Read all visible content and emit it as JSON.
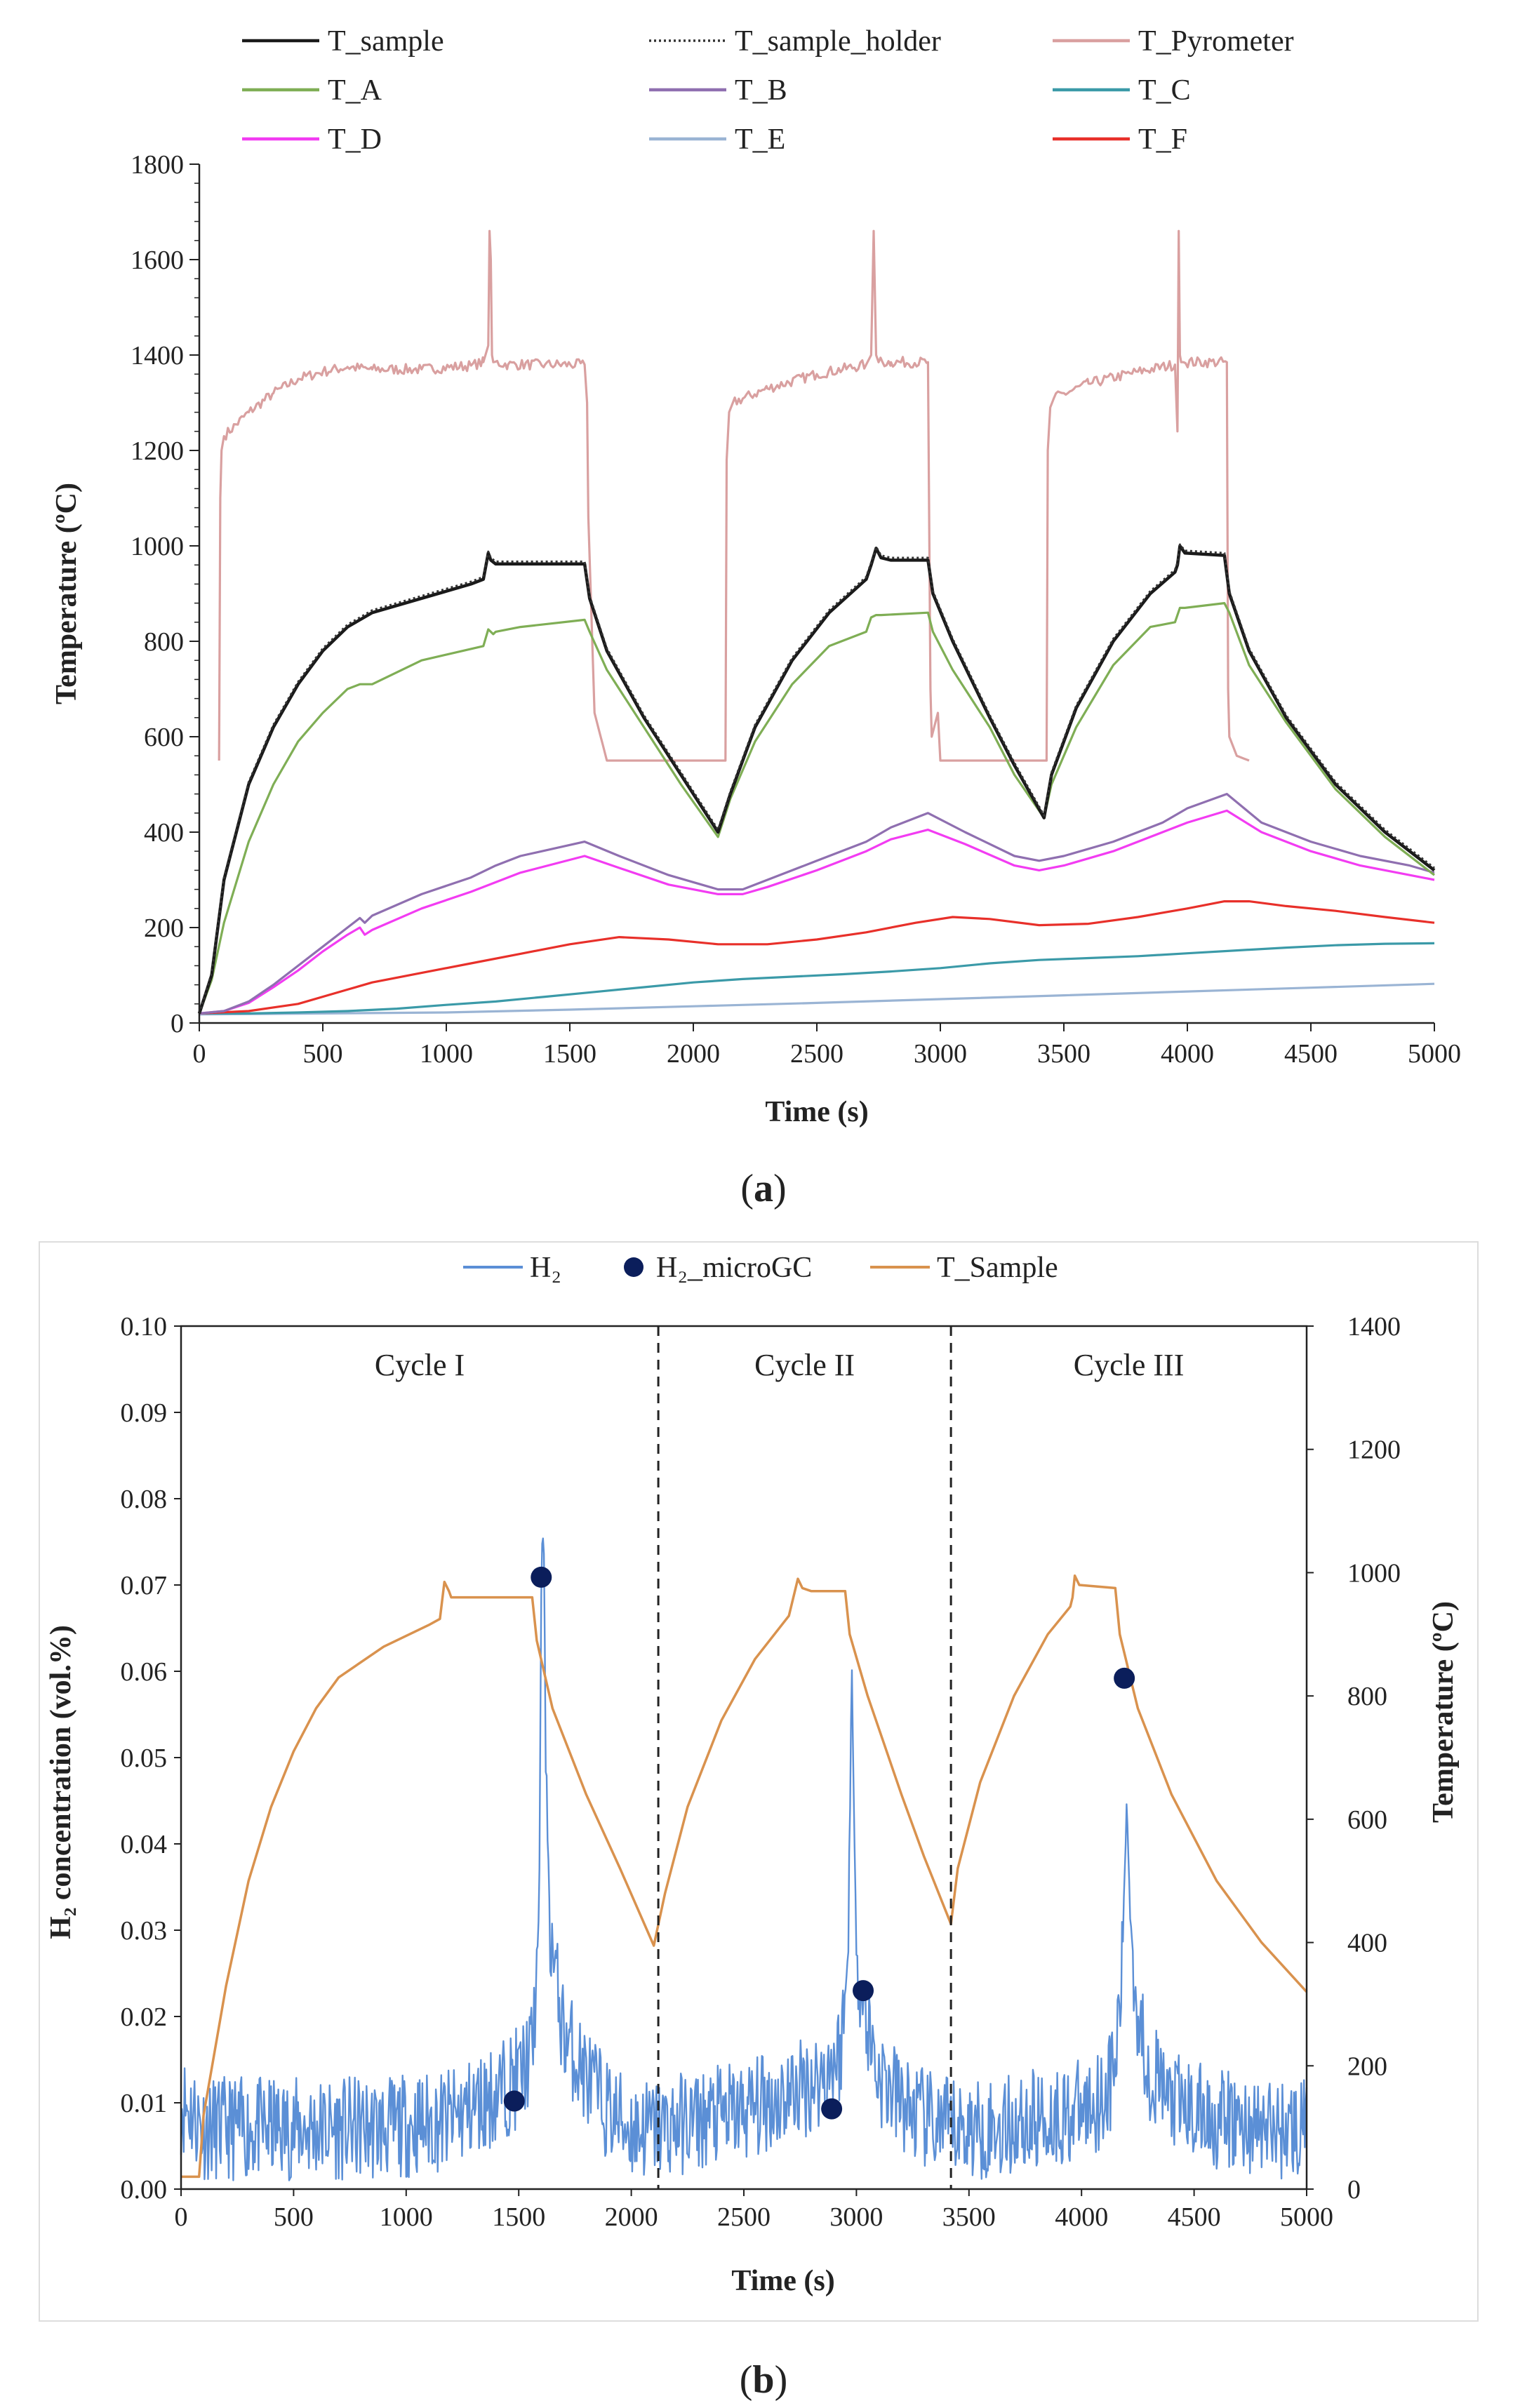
{
  "panel_a": {
    "label": "a",
    "legend": [
      "T_sample",
      "T_sample_holder",
      "T_Pyrometer",
      "T_A",
      "T_B",
      "T_C",
      "T_D",
      "T_E",
      "T_F"
    ]
  },
  "panel_b": {
    "label": "b",
    "legend": [
      "H₂",
      "H₂_microGC",
      "T_Sample"
    ],
    "cycle_labels": [
      "Cycle I",
      "Cycle II",
      "Cycle III"
    ]
  },
  "colors": {
    "T_sample": "#1a1a1a",
    "T_sample_holder": "#333333",
    "T_Pyrometer": "#d9a0a0",
    "T_A": "#7fae55",
    "T_B": "#8f6fb0",
    "T_C": "#3b9aa8",
    "T_D": "#f23cf2",
    "T_E": "#9ab4d4",
    "T_F": "#e8302a",
    "H2": "#5b8fd6",
    "H2_microGC": "#0b1e5b",
    "T_Sample_b": "#d9924e"
  },
  "chart_data": [
    {
      "type": "line",
      "title": "",
      "xlabel": "Time (s)",
      "ylabel": "Temperature (ºC)",
      "xlim": [
        0,
        5000
      ],
      "ylim": [
        0,
        1800
      ],
      "xticks": [
        0,
        500,
        1000,
        1500,
        2000,
        2500,
        3000,
        3500,
        4000,
        4500,
        5000
      ],
      "yticks": [
        0,
        200,
        400,
        600,
        800,
        1000,
        1200,
        1400,
        1600,
        1800
      ],
      "legend_position": "top",
      "series": [
        {
          "name": "T_sample",
          "x": [
            0,
            50,
            100,
            200,
            300,
            400,
            500,
            600,
            700,
            900,
            1100,
            1150,
            1170,
            1180,
            1200,
            1300,
            1560,
            1580,
            1650,
            1800,
            1950,
            2100,
            2150,
            2250,
            2400,
            2550,
            2700,
            2720,
            2740,
            2760,
            2800,
            2950,
            2970,
            3050,
            3200,
            3300,
            3420,
            3450,
            3550,
            3700,
            3850,
            3950,
            3960,
            3970,
            3990,
            4150,
            4170,
            4250,
            4400,
            4600,
            4800,
            5000
          ],
          "y": [
            20,
            100,
            300,
            500,
            620,
            710,
            780,
            830,
            860,
            890,
            920,
            930,
            985,
            970,
            962,
            962,
            962,
            890,
            780,
            640,
            520,
            400,
            480,
            620,
            760,
            860,
            930,
            960,
            995,
            975,
            970,
            970,
            900,
            800,
            640,
            540,
            430,
            520,
            660,
            800,
            900,
            945,
            960,
            1000,
            985,
            980,
            900,
            780,
            640,
            500,
            400,
            320
          ]
        },
        {
          "name": "T_sample_holder",
          "x": [
            0,
            50,
            100,
            200,
            300,
            400,
            500,
            600,
            700,
            900,
            1100,
            1150,
            1170,
            1180,
            1200,
            1300,
            1560,
            1580,
            1650,
            1800,
            1950,
            2100,
            2150,
            2250,
            2400,
            2550,
            2700,
            2720,
            2740,
            2760,
            2800,
            2950,
            2970,
            3050,
            3200,
            3300,
            3420,
            3450,
            3550,
            3700,
            3850,
            3950,
            3960,
            3970,
            3990,
            4150,
            4170,
            4250,
            4400,
            4600,
            4800,
            5000
          ],
          "y": [
            20,
            105,
            305,
            505,
            625,
            715,
            785,
            835,
            865,
            895,
            925,
            935,
            988,
            975,
            967,
            967,
            967,
            895,
            785,
            645,
            525,
            405,
            485,
            625,
            765,
            865,
            935,
            965,
            998,
            980,
            975,
            975,
            905,
            805,
            645,
            545,
            435,
            525,
            665,
            805,
            905,
            950,
            965,
            1003,
            990,
            985,
            905,
            785,
            645,
            505,
            405,
            325
          ]
        },
        {
          "name": "T_Pyrometer",
          "x": [
            80,
            85,
            90,
            100,
            200,
            300,
            400,
            500,
            600,
            700,
            900,
            1100,
            1150,
            1170,
            1175,
            1180,
            1185,
            1190,
            1250,
            1400,
            1560,
            1570,
            1575,
            1600,
            1650,
            2130,
            2135,
            2145,
            2160,
            2300,
            2500,
            2700,
            2720,
            2730,
            2740,
            2750,
            2800,
            2950,
            2960,
            2965,
            2990,
            3000,
            3030,
            3430,
            3435,
            3445,
            3460,
            3600,
            3800,
            3950,
            3960,
            3965,
            3970,
            3975,
            3985,
            4160,
            4165,
            4170,
            4200,
            4250
          ],
          "y": [
            550,
            1100,
            1200,
            1230,
            1280,
            1320,
            1350,
            1365,
            1375,
            1370,
            1370,
            1378,
            1385,
            1420,
            1660,
            1600,
            1400,
            1385,
            1380,
            1380,
            1380,
            1300,
            1060,
            650,
            550,
            550,
            1180,
            1280,
            1300,
            1330,
            1360,
            1380,
            1400,
            1660,
            1400,
            1385,
            1385,
            1385,
            700,
            600,
            650,
            550,
            550,
            550,
            1200,
            1290,
            1310,
            1340,
            1365,
            1380,
            1240,
            1660,
            1400,
            1385,
            1385,
            1385,
            700,
            600,
            560,
            550
          ]
        },
        {
          "name": "T_A",
          "x": [
            0,
            50,
            100,
            200,
            300,
            400,
            500,
            600,
            650,
            700,
            900,
            1150,
            1170,
            1190,
            1200,
            1300,
            1560,
            1580,
            1650,
            1800,
            1950,
            2100,
            2150,
            2250,
            2400,
            2550,
            2700,
            2720,
            2740,
            2760,
            2950,
            2970,
            3050,
            3200,
            3300,
            3420,
            3450,
            3550,
            3700,
            3850,
            3950,
            3970,
            3990,
            4150,
            4170,
            4250,
            4400,
            4600,
            4800,
            5000
          ],
          "y": [
            20,
            90,
            210,
            380,
            500,
            590,
            650,
            700,
            710,
            710,
            760,
            790,
            825,
            815,
            820,
            830,
            845,
            820,
            740,
            620,
            500,
            390,
            470,
            590,
            710,
            790,
            820,
            850,
            855,
            855,
            860,
            820,
            740,
            620,
            520,
            430,
            500,
            620,
            750,
            830,
            840,
            870,
            870,
            880,
            860,
            750,
            630,
            490,
            390,
            310
          ]
        },
        {
          "name": "T_B",
          "x": [
            0,
            100,
            200,
            300,
            400,
            500,
            600,
            650,
            670,
            700,
            900,
            1100,
            1200,
            1300,
            1560,
            1700,
            1900,
            2100,
            2200,
            2300,
            2500,
            2700,
            2800,
            2950,
            3100,
            3300,
            3400,
            3500,
            3700,
            3900,
            4000,
            4160,
            4300,
            4500,
            4700,
            4900,
            5000
          ],
          "y": [
            20,
            25,
            45,
            80,
            120,
            160,
            200,
            220,
            210,
            225,
            270,
            305,
            330,
            350,
            380,
            350,
            310,
            280,
            280,
            300,
            340,
            380,
            410,
            440,
            400,
            350,
            340,
            350,
            380,
            420,
            450,
            480,
            420,
            380,
            350,
            330,
            315
          ]
        },
        {
          "name": "T_C",
          "x": [
            0,
            200,
            400,
            600,
            800,
            1000,
            1200,
            1400,
            1600,
            1800,
            2000,
            2200,
            2400,
            2600,
            2800,
            3000,
            3200,
            3400,
            3600,
            3800,
            4000,
            4200,
            4400,
            4600,
            4800,
            5000
          ],
          "y": [
            20,
            20,
            22,
            25,
            30,
            38,
            45,
            55,
            65,
            75,
            85,
            92,
            97,
            102,
            108,
            115,
            125,
            132,
            136,
            140,
            146,
            152,
            158,
            163,
            166,
            167
          ]
        },
        {
          "name": "T_D",
          "x": [
            0,
            100,
            200,
            300,
            400,
            500,
            600,
            650,
            670,
            700,
            900,
            1100,
            1200,
            1300,
            1560,
            1700,
            1900,
            2100,
            2200,
            2300,
            2500,
            2700,
            2800,
            2950,
            3100,
            3300,
            3400,
            3500,
            3700,
            3900,
            4000,
            4160,
            4300,
            4500,
            4700,
            4900,
            5000
          ],
          "y": [
            20,
            25,
            42,
            75,
            110,
            150,
            185,
            200,
            185,
            195,
            240,
            275,
            295,
            315,
            350,
            325,
            290,
            270,
            270,
            285,
            320,
            360,
            385,
            405,
            375,
            330,
            320,
            330,
            360,
            400,
            420,
            445,
            400,
            360,
            330,
            310,
            300
          ]
        },
        {
          "name": "T_E",
          "x": [
            0,
            500,
            1000,
            1500,
            2000,
            2500,
            3000,
            3500,
            4000,
            4500,
            5000
          ],
          "y": [
            18,
            20,
            22,
            28,
            35,
            42,
            50,
            58,
            66,
            74,
            82
          ]
        },
        {
          "name": "T_F",
          "x": [
            0,
            200,
            400,
            600,
            700,
            900,
            1100,
            1300,
            1500,
            1700,
            1900,
            2100,
            2300,
            2500,
            2700,
            2900,
            3050,
            3200,
            3400,
            3600,
            3800,
            4000,
            4150,
            4250,
            4400,
            4600,
            4800,
            5000
          ],
          "y": [
            20,
            25,
            40,
            70,
            85,
            105,
            125,
            145,
            165,
            180,
            175,
            165,
            165,
            175,
            190,
            210,
            222,
            218,
            205,
            208,
            222,
            240,
            255,
            255,
            245,
            235,
            222,
            210
          ]
        }
      ]
    },
    {
      "type": "line",
      "title": "",
      "xlabel": "Time (s)",
      "ylabel": "H₂ concentration (vol.%)",
      "y2label": "Temperature (ºC)",
      "xlim": [
        0,
        5000
      ],
      "ylim": [
        0,
        0.1
      ],
      "y2lim": [
        0,
        1400
      ],
      "xticks": [
        0,
        500,
        1000,
        1500,
        2000,
        2500,
        3000,
        3500,
        4000,
        4500,
        5000
      ],
      "yticks": [
        0.0,
        0.01,
        0.02,
        0.03,
        0.04,
        0.05,
        0.06,
        0.07,
        0.08,
        0.09,
        0.1
      ],
      "y2ticks": [
        0,
        200,
        400,
        600,
        800,
        1000,
        1200,
        1400
      ],
      "cycle_boundaries": [
        2120,
        3420
      ],
      "legend_position": "top",
      "series": [
        {
          "name": "H₂",
          "axis": "left",
          "x": [
            0,
            50,
            100,
            300,
            600,
            900,
            1200,
            1400,
            1500,
            1560,
            1590,
            1600,
            1610,
            1620,
            1640,
            1660,
            1700,
            1800,
            1900,
            2000,
            2100,
            2300,
            2500,
            2700,
            2850,
            2930,
            2960,
            2980,
            2990,
            3010,
            3040,
            3100,
            3200,
            3300,
            3400,
            3600,
            3800,
            4000,
            4100,
            4150,
            4180,
            4200,
            4220,
            4250,
            4300,
            4400,
            4600,
            4800,
            5000
          ],
          "y": [
            0.01,
            0.009,
            0.007,
            0.007,
            0.007,
            0.007,
            0.008,
            0.011,
            0.013,
            0.016,
            0.03,
            0.07,
            0.078,
            0.05,
            0.03,
            0.025,
            0.018,
            0.013,
            0.009,
            0.007,
            0.007,
            0.008,
            0.009,
            0.011,
            0.013,
            0.016,
            0.025,
            0.06,
            0.04,
            0.025,
            0.02,
            0.013,
            0.01,
            0.008,
            0.007,
            0.007,
            0.008,
            0.009,
            0.011,
            0.014,
            0.025,
            0.045,
            0.03,
            0.02,
            0.014,
            0.01,
            0.008,
            0.007,
            0.007
          ]
        },
        {
          "name": "H₂_microGC",
          "axis": "left",
          "type": "scatter",
          "x": [
            1480,
            1600,
            2890,
            3030,
            4190
          ],
          "y": [
            0.0102,
            0.0709,
            0.0093,
            0.023,
            0.0592
          ]
        },
        {
          "name": "T_Sample",
          "axis": "right",
          "x": [
            0,
            80,
            100,
            200,
            300,
            400,
            500,
            600,
            700,
            900,
            1100,
            1150,
            1170,
            1190,
            1200,
            1300,
            1560,
            1580,
            1650,
            1800,
            1950,
            2100,
            2150,
            2250,
            2400,
            2550,
            2700,
            2720,
            2740,
            2760,
            2800,
            2950,
            2970,
            3050,
            3200,
            3300,
            3420,
            3450,
            3550,
            3700,
            3850,
            3950,
            3960,
            3970,
            3990,
            4150,
            4170,
            4250,
            4400,
            4600,
            4800,
            5000
          ],
          "y": [
            20,
            20,
            120,
            330,
            500,
            620,
            710,
            780,
            830,
            880,
            915,
            925,
            985,
            970,
            960,
            960,
            960,
            890,
            780,
            640,
            520,
            395,
            480,
            620,
            760,
            860,
            930,
            960,
            990,
            975,
            970,
            970,
            900,
            800,
            640,
            540,
            430,
            520,
            660,
            800,
            900,
            945,
            960,
            995,
            980,
            975,
            900,
            780,
            640,
            500,
            400,
            320
          ]
        }
      ]
    }
  ]
}
